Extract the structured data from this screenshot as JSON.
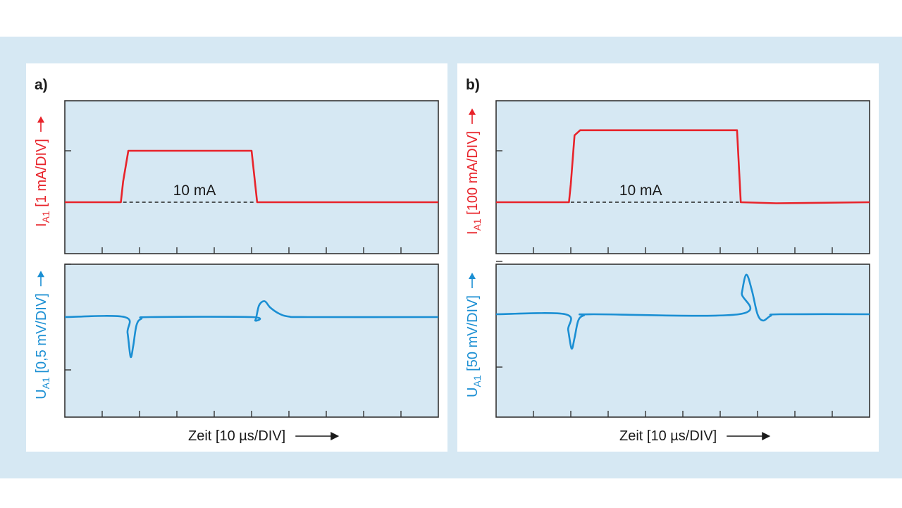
{
  "colors": {
    "band": "#d6e8f3",
    "plot_bg": "#d6e8f3",
    "current": "#e8232a",
    "voltage": "#1b8fd3",
    "axis": "#333333"
  },
  "chart_data": [
    {
      "type": "line",
      "panel_label": "a)",
      "xlabel": "Zeit [10 µs/DIV]",
      "divisions_x": 10,
      "grid": false,
      "subplots": [
        {
          "ylabel_main": "I",
          "ylabel_sub": "A1",
          "ylabel_rest": " [1 mA/DIV]",
          "annotation": "10 mA",
          "series": [
            {
              "x": [
                0,
                1.5,
                1.56,
                1.7,
                3.5,
                5.0,
                5.15,
                10
              ],
              "y": [
                0,
                0,
                0.4,
                1.0,
                1.0,
                1.0,
                0,
                0
              ]
            }
          ]
        },
        {
          "ylabel_main": "U",
          "ylabel_sub": "A1",
          "ylabel_rest": " [0,5 mV/DIV]",
          "series": [
            {
              "x": [
                0,
                1.6,
                1.68,
                1.76,
                1.83,
                1.92,
                2.05,
                2.3,
                5.0,
                5.1,
                5.2,
                5.35,
                5.5,
                5.75,
                6.0,
                6.5,
                10
              ],
              "y": [
                0,
                0,
                -0.3,
                -0.75,
                -0.55,
                -0.15,
                -0.03,
                0,
                0,
                -0.06,
                0.22,
                0.3,
                0.18,
                0.06,
                0.01,
                0,
                0
              ]
            }
          ]
        }
      ]
    },
    {
      "type": "line",
      "panel_label": "b)",
      "xlabel": "Zeit [10 µs/DIV]",
      "divisions_x": 10,
      "grid": false,
      "subplots": [
        {
          "ylabel_main": "I",
          "ylabel_sub": "A1",
          "ylabel_rest": " [100 mA/DIV]",
          "annotation": "10 mA",
          "series": [
            {
              "x": [
                0,
                1.95,
                2.0,
                2.1,
                2.25,
                4.0,
                6.45,
                6.55,
                7.5,
                10
              ],
              "y": [
                0,
                0,
                0.35,
                1.3,
                1.4,
                1.4,
                1.4,
                0,
                -0.02,
                0
              ]
            }
          ]
        },
        {
          "ylabel_main": "U",
          "ylabel_sub": "A1",
          "ylabel_rest": " [50 mV/DIV]",
          "series": [
            {
              "x": [
                0,
                1.85,
                1.93,
                2.02,
                2.1,
                2.2,
                2.35,
                2.6,
                6.5,
                6.58,
                6.7,
                6.85,
                7.0,
                7.15,
                7.35,
                7.6,
                10
              ],
              "y": [
                0,
                0,
                -0.3,
                -0.65,
                -0.45,
                -0.12,
                -0.02,
                0,
                0,
                0.4,
                0.75,
                0.45,
                0.0,
                -0.12,
                -0.03,
                0,
                0
              ]
            }
          ]
        }
      ]
    }
  ]
}
